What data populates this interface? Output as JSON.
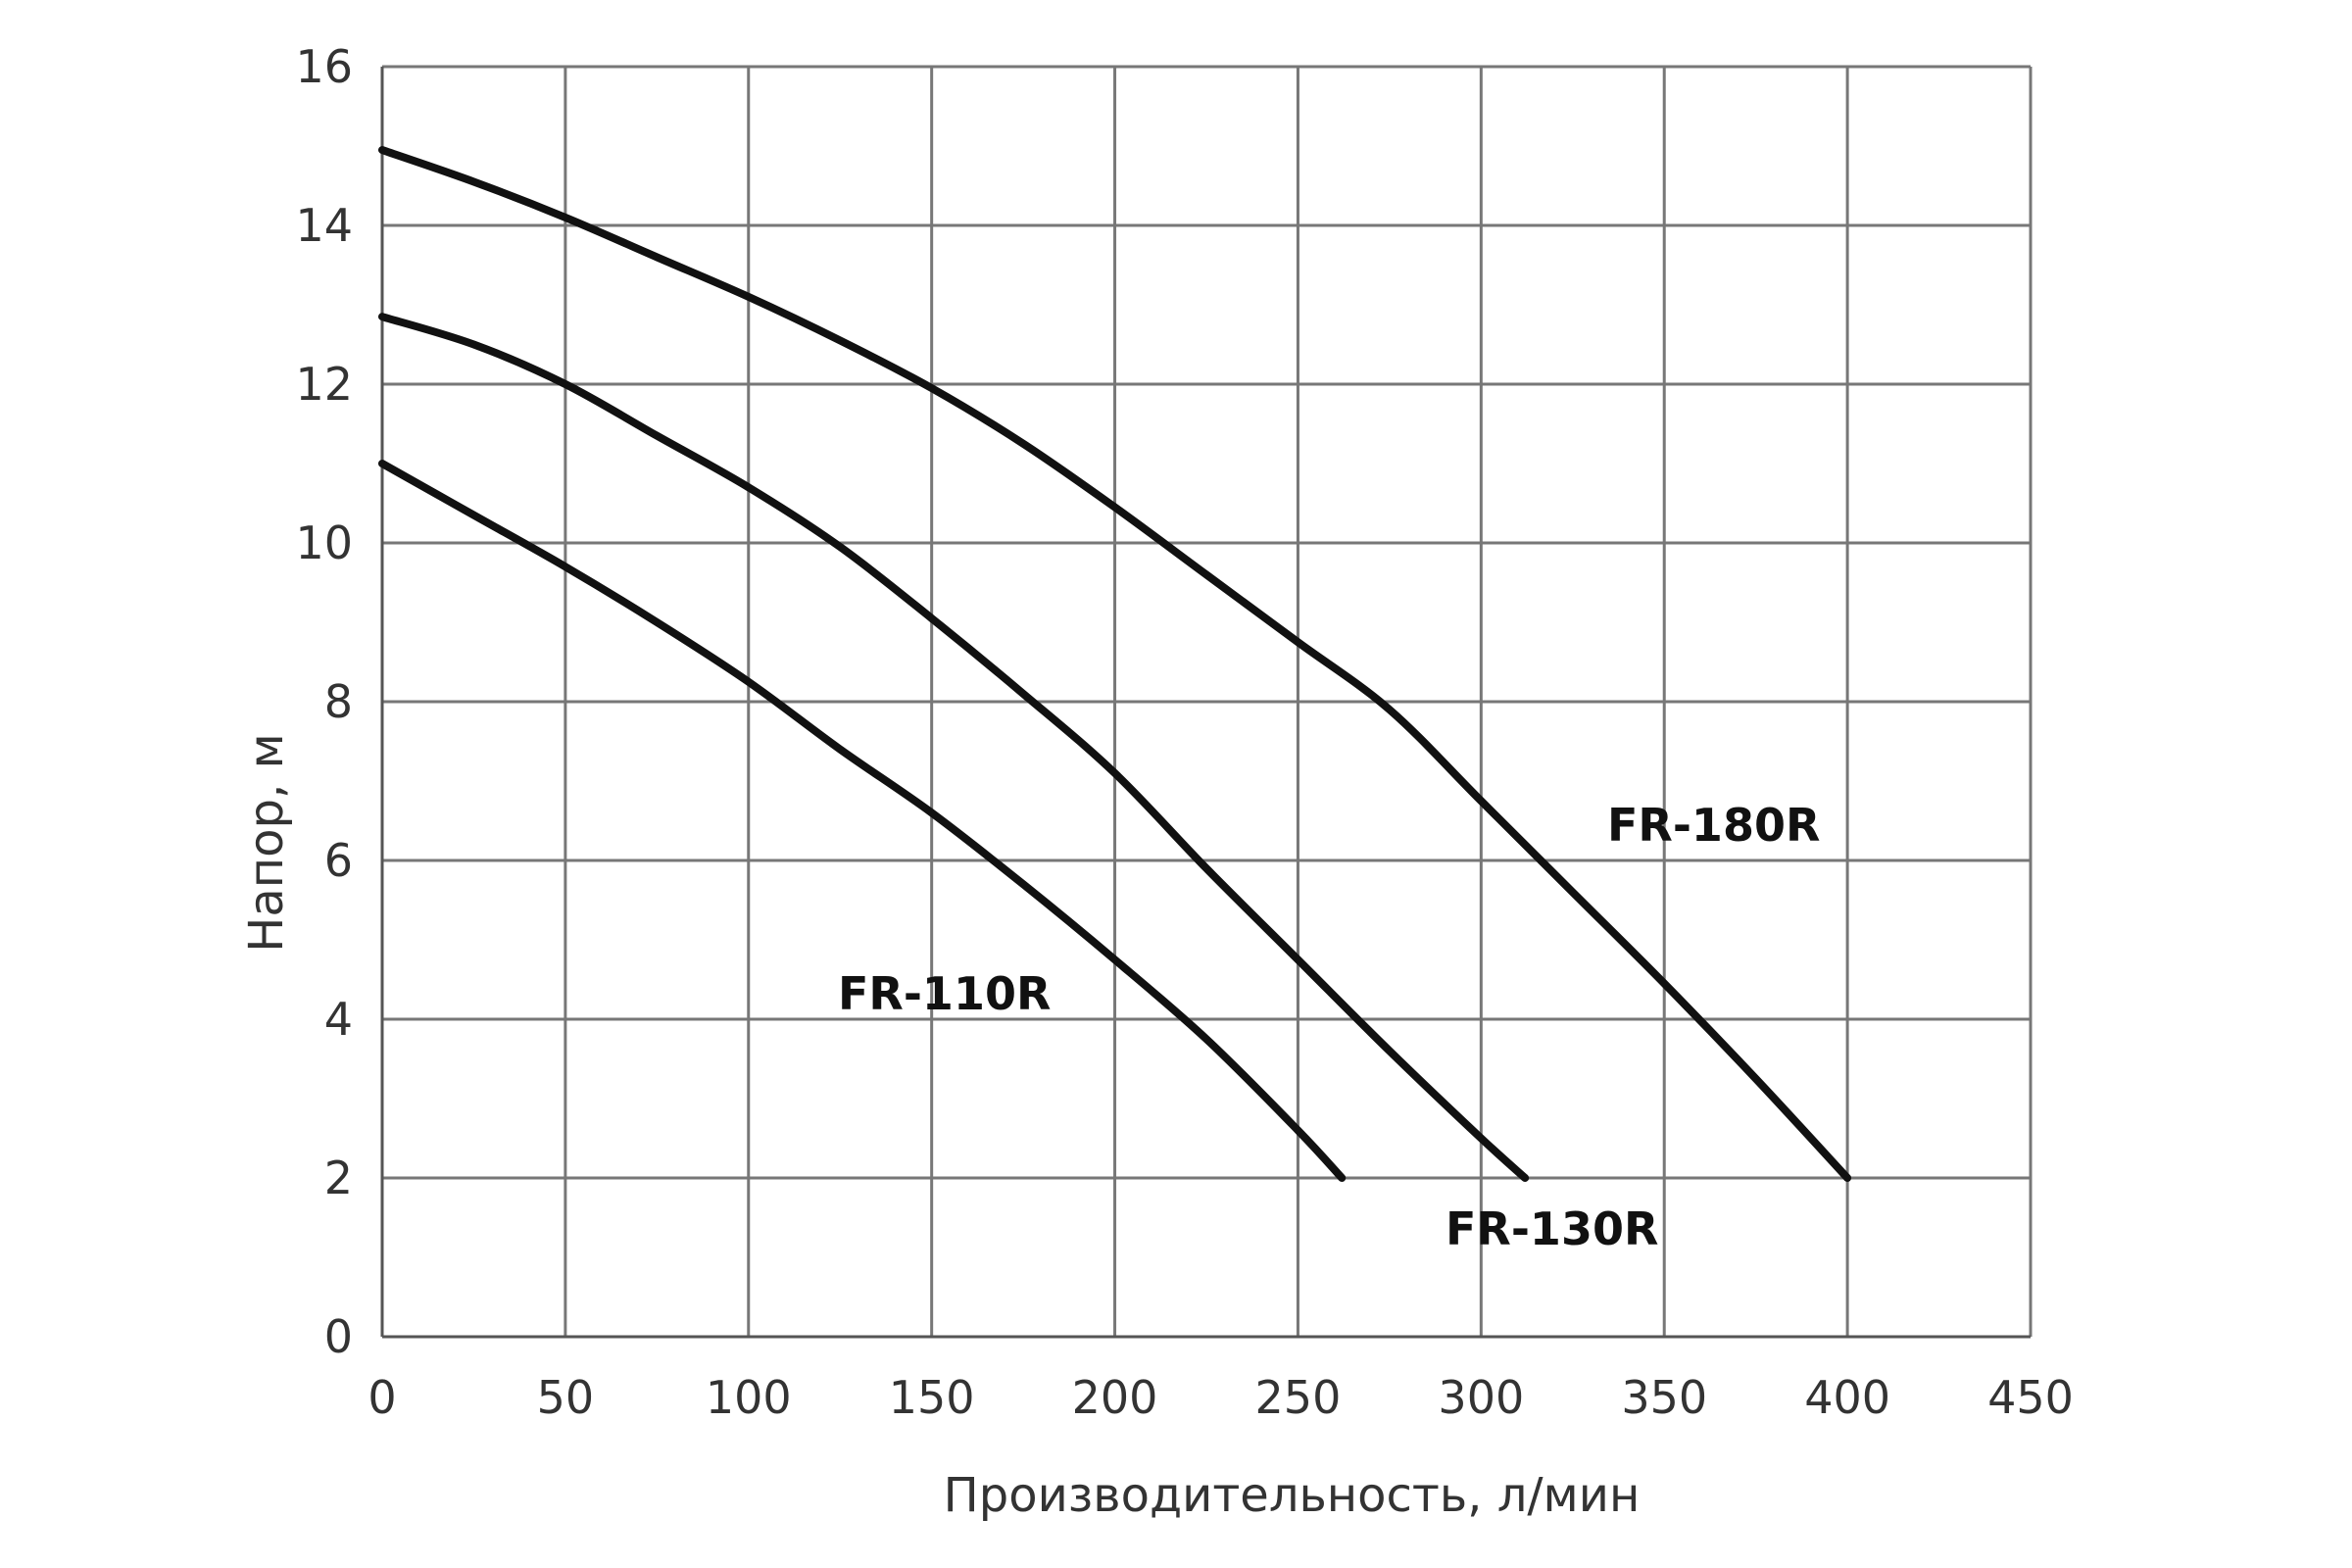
{
  "chart_data": {
    "type": "line",
    "xlabel": "Производительность, л/мин",
    "ylabel": "Напор, м",
    "xlim": [
      0,
      450
    ],
    "ylim": [
      0,
      16
    ],
    "x_ticks": [
      0,
      50,
      100,
      150,
      200,
      250,
      300,
      350,
      400,
      450
    ],
    "y_ticks": [
      0,
      2,
      4,
      6,
      8,
      10,
      12,
      14,
      16
    ],
    "grid": true,
    "colors": {
      "curve": "#111111",
      "grid": "#777777",
      "text": "#333333"
    },
    "series": [
      {
        "name": "FR-110R",
        "x": [
          0,
          25,
          50,
          75,
          100,
          125,
          150,
          175,
          200,
          225,
          250,
          262
        ],
        "y": [
          11,
          10.35,
          9.7,
          9.0,
          8.25,
          7.4,
          6.6,
          5.7,
          4.75,
          3.75,
          2.6,
          2
        ]
      },
      {
        "name": "FR-130R",
        "x": [
          0,
          25,
          50,
          75,
          100,
          125,
          150,
          175,
          200,
          225,
          250,
          275,
          300,
          312
        ],
        "y": [
          12.85,
          12.5,
          12.0,
          11.35,
          10.7,
          9.95,
          9.05,
          8.1,
          7.1,
          5.9,
          4.75,
          3.6,
          2.5,
          2
        ]
      },
      {
        "name": "FR-180R",
        "x": [
          0,
          25,
          50,
          75,
          100,
          125,
          150,
          175,
          200,
          225,
          250,
          275,
          300,
          325,
          350,
          375,
          400
        ],
        "y": [
          14.95,
          14.55,
          14.1,
          13.6,
          13.1,
          12.55,
          11.95,
          11.25,
          10.45,
          9.6,
          8.75,
          7.9,
          6.75,
          5.6,
          4.45,
          3.25,
          2
        ]
      }
    ]
  }
}
